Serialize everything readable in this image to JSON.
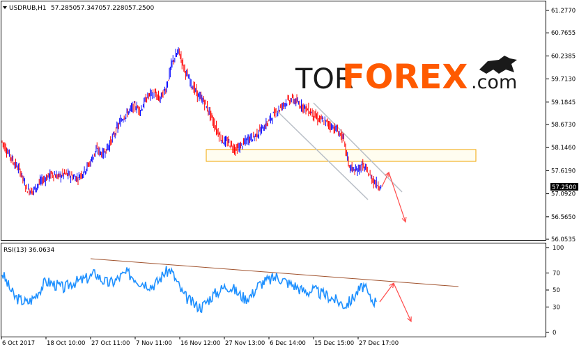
{
  "header": {
    "symbol": "USDRUB,H1",
    "open": "57.2850",
    "high": "57.3470",
    "low": "57.2280",
    "close": "57.2500"
  },
  "watermark": {
    "part1": "TOR",
    "part2": "FOREX",
    "part3": ".com"
  },
  "price_axis": {
    "ticks": [
      "61.2770",
      "60.7655",
      "60.2385",
      "59.7130",
      "59.1845",
      "58.6730",
      "58.1460",
      "57.6190",
      "57.0920",
      "56.5650",
      "56.0535"
    ],
    "current": "57.2500"
  },
  "rsi": {
    "label": "RSI(13) 36.0634",
    "ticks": [
      "100",
      "70",
      "50",
      "30",
      "0"
    ]
  },
  "time_axis": {
    "labels": [
      "6 Oct 2017",
      "18 Oct 10:00",
      "27 Oct 11:00",
      "7 Nov 11:00",
      "16 Nov 12:00",
      "27 Nov 13:00",
      "6 Dec 14:00",
      "15 Dec 15:00",
      "27 Dec 17:00"
    ]
  },
  "colors": {
    "bull_candle": "#0000ff",
    "bear_candle": "#ff0000",
    "rsi_line": "#1e90ff",
    "forecast_arrow": "#ff4a4a",
    "channel": "#b9bfc7",
    "zone": "#f0a500",
    "trendline": "#a0522d"
  },
  "chart_data": {
    "type": "line",
    "title": "USDRUB,H1",
    "price_series_close": [
      58.3,
      58.05,
      57.8,
      57.6,
      57.2,
      57.15,
      57.35,
      57.45,
      57.55,
      57.48,
      57.55,
      57.5,
      57.45,
      57.6,
      57.8,
      58.1,
      58.0,
      58.2,
      58.5,
      58.8,
      58.95,
      59.1,
      59.0,
      59.3,
      59.4,
      59.25,
      59.5,
      60.1,
      60.35,
      59.9,
      59.6,
      59.35,
      59.2,
      58.9,
      58.55,
      58.3,
      58.25,
      58.1,
      58.2,
      58.35,
      58.4,
      58.55,
      58.7,
      58.9,
      59.05,
      59.2,
      59.25,
      59.15,
      59.05,
      58.95,
      58.8,
      58.75,
      58.65,
      58.55,
      58.35,
      57.7,
      57.6,
      57.75,
      57.55,
      57.35,
      57.25
    ],
    "rsi_series": [
      70,
      55,
      42,
      38,
      35,
      40,
      50,
      60,
      58,
      55,
      52,
      58,
      60,
      62,
      65,
      70,
      62,
      58,
      60,
      66,
      70,
      66,
      60,
      58,
      55,
      60,
      70,
      74,
      60,
      45,
      38,
      32,
      30,
      38,
      45,
      50,
      55,
      52,
      45,
      40,
      44,
      55,
      60,
      62,
      66,
      62,
      58,
      55,
      50,
      48,
      50,
      46,
      44,
      40,
      36,
      32,
      38,
      48,
      55,
      40,
      36
    ],
    "ylim": [
      56.0535,
      61.277
    ],
    "rsi_ylim": [
      0,
      100
    ],
    "forecast": [
      57.25,
      57.58,
      56.45
    ],
    "rsi_forecast": [
      36,
      58,
      13
    ]
  }
}
